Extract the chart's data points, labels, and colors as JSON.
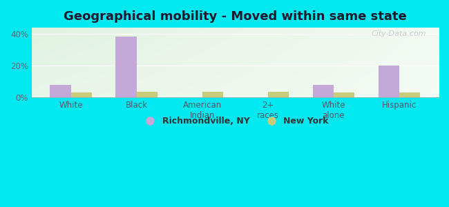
{
  "title": "Geographical mobility - Moved within same state",
  "categories": [
    "White",
    "Black",
    "American\nIndian",
    "2+\nraces",
    "White\nalone",
    "Hispanic"
  ],
  "richmondville_values": [
    8.0,
    38.5,
    0.0,
    0.0,
    8.0,
    20.0
  ],
  "newyork_values": [
    3.0,
    3.5,
    3.5,
    3.5,
    3.0,
    3.0
  ],
  "bar_color_richmondville": "#c4a8d8",
  "bar_color_newyork": "#c8cc7a",
  "ylim": [
    0,
    44
  ],
  "yticks": [
    0,
    20,
    40
  ],
  "ytick_labels": [
    "0%",
    "20%",
    "40%"
  ],
  "legend_label_1": "Richmondville, NY",
  "legend_label_2": "New York",
  "fig_bg_color": "#00e8f0",
  "plot_bg_color_topleft": "#d4edda",
  "plot_bg_color_topright": "#e8f4f0",
  "plot_bg_color_bottom": "#f0f8f0",
  "watermark": "City-Data.com",
  "bar_width": 0.32,
  "title_fontsize": 13,
  "tick_fontsize": 8.5,
  "legend_fontsize": 9
}
